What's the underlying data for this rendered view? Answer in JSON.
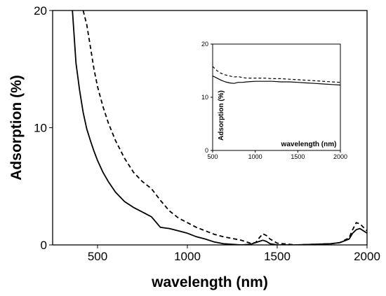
{
  "chart_data": [
    {
      "id": "main",
      "type": "line",
      "title": "",
      "xlabel": "wavelength (nm)",
      "ylabel": "Adsorption (%)",
      "xlim": [
        250,
        2000
      ],
      "ylim": [
        0,
        20
      ],
      "xticks": [
        500,
        1000,
        1500,
        2000
      ],
      "yticks": [
        0,
        10,
        20
      ],
      "grid": false,
      "legend": "none",
      "series": [
        {
          "style": "solid",
          "x": [
            360,
            380,
            400,
            420,
            440,
            460,
            480,
            500,
            530,
            560,
            600,
            650,
            700,
            750,
            800,
            850,
            900,
            950,
            1000,
            1050,
            1100,
            1150,
            1200,
            1250,
            1300,
            1350,
            1400,
            1420,
            1440,
            1460,
            1500,
            1600,
            1700,
            1800,
            1850,
            1900,
            1920,
            1940,
            1960,
            1980,
            2000
          ],
          "y": [
            20,
            15.5,
            13.2,
            11.3,
            9.9,
            8.9,
            8.0,
            7.2,
            6.2,
            5.4,
            4.5,
            3.7,
            3.2,
            2.8,
            2.4,
            1.5,
            1.4,
            1.2,
            1.0,
            0.7,
            0.5,
            0.25,
            0.1,
            0.05,
            0.0,
            0.05,
            0.3,
            0.4,
            0.3,
            0.1,
            0.0,
            0.0,
            0.05,
            0.1,
            0.2,
            0.5,
            1.0,
            1.3,
            1.4,
            1.2,
            1.0
          ]
        },
        {
          "style": "dashed",
          "x": [
            420,
            440,
            460,
            480,
            500,
            530,
            560,
            600,
            650,
            700,
            750,
            800,
            850,
            900,
            950,
            1000,
            1050,
            1100,
            1150,
            1200,
            1250,
            1300,
            1350,
            1380,
            1400,
            1420,
            1440,
            1460,
            1500,
            1600,
            1700,
            1800,
            1850,
            1900,
            1920,
            1940,
            1960,
            1980,
            2000
          ],
          "y": [
            20,
            18.8,
            16.9,
            15.0,
            13.5,
            11.8,
            10.4,
            8.9,
            7.4,
            6.2,
            5.4,
            4.8,
            3.8,
            2.9,
            2.3,
            1.9,
            1.5,
            1.2,
            0.9,
            0.7,
            0.55,
            0.4,
            0.15,
            0.2,
            0.6,
            0.95,
            0.8,
            0.5,
            0.15,
            0.0,
            0.05,
            0.1,
            0.2,
            0.6,
            1.3,
            1.9,
            1.8,
            1.5,
            1.2
          ]
        }
      ]
    },
    {
      "id": "inset",
      "type": "line",
      "title": "",
      "xlabel": "wavelength (nm)",
      "ylabel": "Adsorption (%)",
      "xlim": [
        500,
        2000
      ],
      "ylim": [
        0,
        20
      ],
      "xticks": [
        500,
        1000,
        1500,
        2000
      ],
      "yticks": [
        0,
        10,
        20
      ],
      "grid": false,
      "legend": "none",
      "series": [
        {
          "style": "solid",
          "x": [
            500,
            550,
            600,
            650,
            700,
            750,
            800,
            850,
            900,
            1000,
            1100,
            1200,
            1300,
            1400,
            1500,
            1600,
            1700,
            1800,
            1900,
            2000
          ],
          "y": [
            14.0,
            13.6,
            13.2,
            12.9,
            12.7,
            12.6,
            12.8,
            12.8,
            12.9,
            13.0,
            13.0,
            13.0,
            12.9,
            12.9,
            12.8,
            12.7,
            12.6,
            12.5,
            12.4,
            12.3
          ]
        },
        {
          "style": "dashed",
          "x": [
            500,
            550,
            600,
            650,
            700,
            750,
            800,
            850,
            900,
            1000,
            1100,
            1200,
            1300,
            1400,
            1500,
            1600,
            1700,
            1800,
            1900,
            2000
          ],
          "y": [
            15.8,
            15.0,
            14.5,
            14.2,
            14.0,
            13.8,
            13.9,
            13.7,
            13.6,
            13.6,
            13.6,
            13.5,
            13.5,
            13.4,
            13.3,
            13.2,
            13.1,
            13.0,
            12.9,
            12.8
          ]
        }
      ]
    }
  ]
}
